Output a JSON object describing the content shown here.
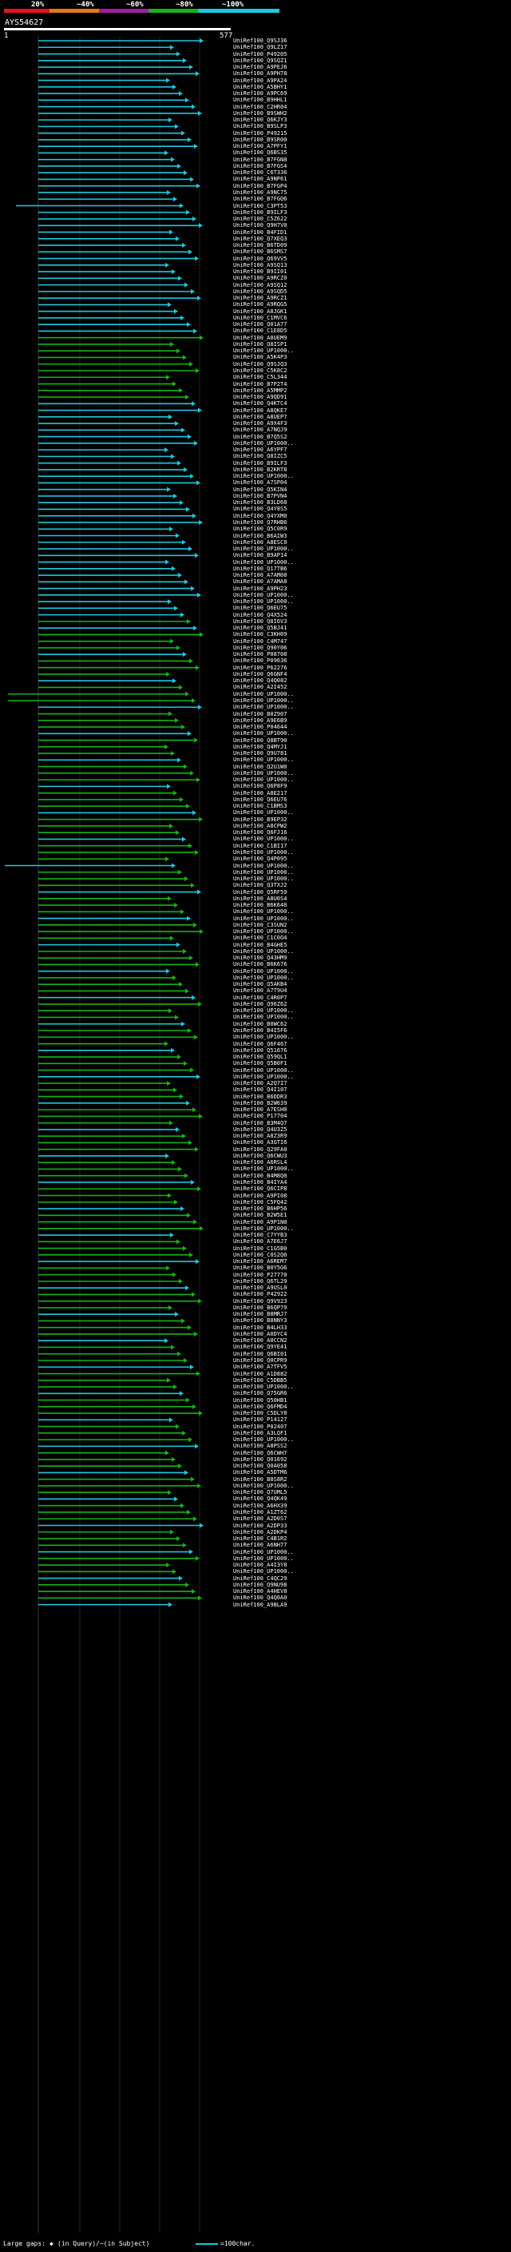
{
  "legend": [
    {
      "label": "20%",
      "color": "#e6141e"
    },
    {
      "label": "~40%",
      "color": "#e67814"
    },
    {
      "label": "~60%",
      "color": "#a01ea0"
    },
    {
      "label": "~80%",
      "color": "#14b414"
    },
    {
      "label": "~100%",
      "color": "#1ec8dc"
    }
  ],
  "query": {
    "name": "AYS54627",
    "start": "1",
    "end": "577"
  },
  "hits": [
    "UniRef100_Q9SJ36",
    "UniRef100_Q9LZ17",
    "UniRef100_P49205",
    "UniRef100_Q9SQZ1",
    "UniRef100_A9PEJ6",
    "UniRef100_A9PH78",
    "UniRef100_A9PA24",
    "UniRef100_A5BHY1",
    "UniRef100_A9PC69",
    "UniRef100_B9HHL1",
    "UniRef100_C2HR04",
    "UniRef100_B9SWH2",
    "UniRef100_Q6KJY3",
    "UniRef100_B9SLP3",
    "UniRef100_P49215",
    "UniRef100_B9SR00",
    "UniRef100_A7PFY1",
    "UniRef100_Q6BS35",
    "UniRef100_B7FGN8",
    "UniRef100_B7FGS4",
    "UniRef100_C6T336",
    "UniRef100_A9NP61",
    "UniRef100_B7FGP4",
    "UniRef100_A9NC75",
    "UniRef100_B7FGQ6",
    "UniRef100_C3PT53",
    "UniRef100_B9ILF3",
    "UniRef100_C5Z622",
    "UniRef100_Q9H7V0",
    "UniRef100_B4FID1",
    "UniRef100_Q7XEQ3",
    "UniRef100_B6TD09",
    "UniRef100_B6SMS7",
    "UniRef100_Q69VV5",
    "UniRef100_A9SQ13",
    "UniRef100_B9II01",
    "UniRef100_A9RCZ0",
    "UniRef100_A9SQ12",
    "UniRef100_A9SQD5",
    "UniRef100_A9RCZ1",
    "UniRef100_A9RQG5",
    "UniRef100_A8JGK1",
    "UniRef100_C1MVC6",
    "UniRef100_Q01A77",
    "UniRef100_C1E8D5",
    "UniRef100_A8UEM9",
    "UniRef100_Q8ISP1",
    "UniRef100_UP1000..",
    "UniRef100_A5K4P3",
    "UniRef100_Q9SJQ3",
    "UniRef100_C5K8C2",
    "UniRef100_C5L344",
    "UniRef100_B7P2T4",
    "UniRef100_A5MMP2",
    "UniRef100_A9QD91",
    "UniRef100_Q4KTC4",
    "UniRef100_A8QKE7",
    "UniRef100_A8UEP7",
    "UniRef100_A9X4F3",
    "UniRef100_A7NQJ9",
    "UniRef100_B7Q5S2",
    "UniRef100_UP1000..",
    "UniRef100_A6YPF7",
    "UniRef100_Q8IZC5",
    "UniRef100_B9ILF3",
    "UniRef100_B2KRT8",
    "UniRef100_UP1000..",
    "UniRef100_A7SP04",
    "UniRef100_Q5KIN4",
    "UniRef100_B7PVN4",
    "UniRef100_B3LD68",
    "UniRef100_Q4Y8S5",
    "UniRef100_Q4YXM0",
    "UniRef100_Q7RHB6",
    "UniRef100_Q5C0R9",
    "UniRef100_B6AIW3",
    "UniRef100_A8ESC0",
    "UniRef100_UP1000..",
    "UniRef100_B9AP14",
    "UniRef100_UP1000..",
    "UniRef100_Q17TB6",
    "UniRef100_A7AM08",
    "UniRef100_A7AMA8",
    "UniRef100_A9PH23",
    "UniRef100_UP1000..",
    "UniRef100_UP1000..",
    "UniRef100_Q6EU75",
    "UniRef100_Q4X524",
    "UniRef100_Q8I6V3",
    "UniRef100_Q5BJ41",
    "UniRef100_C3KH09",
    "UniRef100_C4M747",
    "UniRef100_Q90Y06",
    "UniRef100_P08708",
    "UniRef100_P09636",
    "UniRef100_P62276",
    "UniRef100_Q6GNF4",
    "UniRef100_Q4Q082",
    "UniRef100_A2I452",
    "UniRef100_UP1000..",
    "UniRef100_UP1000..",
    "UniRef100_UP1000..",
    "UniRef100_B0Z907",
    "UniRef100_A9E6B9",
    "UniRef100_P04644",
    "UniRef100_UP1000..",
    "UniRef100_Q8BT90",
    "UniRef100_Q4MYJ1",
    "UniRef100_Q9U781",
    "UniRef100_UP1000..",
    "UniRef100_Q2U1W0",
    "UniRef100_UP1000..",
    "UniRef100_UP1000..",
    "UniRef100_Q6P8F9",
    "UniRef100_A8E217",
    "UniRef100_Q6EU76",
    "UniRef100_C1BMS3",
    "UniRef100_UP1000..",
    "UniRef100_B9EP32",
    "UniRef100_A8CPW2",
    "UniRef100_Q6FJ16",
    "UniRef100_UP1000..",
    "UniRef100_C1BI17",
    "UniRef100_UP1000..",
    "UniRef100_Q4P095",
    "UniRef100_UP1000..",
    "UniRef100_UP1000..",
    "UniRef100_UP1000..",
    "UniRef100_Q3TXJ2",
    "UniRef100_Q5RF59",
    "UniRef100_A8U0S4",
    "UniRef100_B6K640",
    "UniRef100_UP1000..",
    "UniRef100_UP1000..",
    "UniRef100_C3SUN2",
    "UniRef100_UP1000..",
    "UniRef100_C1C0O4",
    "UniRef100_B4GHE5",
    "UniRef100_UP1000..",
    "UniRef100_Q43HM9",
    "UniRef100_B6K676",
    "UniRef100_UP1000..",
    "UniRef100_UP1000..",
    "UniRef100_Q5AKB4",
    "UniRef100_A7T9U4",
    "UniRef100_C4R0P7",
    "UniRef100_Q96Z62",
    "UniRef100_UP1000..",
    "UniRef100_UP1000..",
    "UniRef100_B0WC62",
    "UniRef100_B4I5F6",
    "UniRef100_UP1000..",
    "UniRef100_Q6F467",
    "UniRef100_Q51676",
    "UniRef100_Q59QL1",
    "UniRef100_Q5B0F1",
    "UniRef100_UP1000..",
    "UniRef100_UP1000..",
    "UniRef100_A2Q7I7",
    "UniRef100_Q4I107",
    "UniRef100_B6DDR3",
    "UniRef100_B2W639",
    "UniRef100_A7ESH0",
    "UniRef100_P17704",
    "UniRef100_B3M4Q7",
    "UniRef100_Q4U3Z5",
    "UniRef100_A8Z3R9",
    "UniRef100_A3GTI6",
    "UniRef100_Q29FA0",
    "UniRef100_Q6CWU3",
    "UniRef100_A6RSL4",
    "UniRef100_UP1000..",
    "UniRef100_B4M8Q0",
    "UniRef100_B4IYA4",
    "UniRef100_Q6CIP8",
    "UniRef100_A9PI08",
    "UniRef100_C5FQ42",
    "UniRef100_B6HP56",
    "UniRef100_B2W5E1",
    "UniRef100_A9P1N0",
    "UniRef100_UP1000..",
    "UniRef100_C7YYB3",
    "UniRef100_A7E6J7",
    "UniRef100_C1G5B0",
    "UniRef100_C0S2Q6",
    "UniRef100_A6REM7",
    "UniRef100_B0Y5G6",
    "UniRef100_P27770",
    "UniRef100_Q6TL29",
    "UniRef100_A9USL0",
    "UniRef100_P42922",
    "UniRef100_Q9V923",
    "UniRef100_B6QP79",
    "UniRef100_B8MRJ7",
    "UniRef100_B8NNY3",
    "UniRef100_B4LH33",
    "UniRef100_A0DYC4",
    "UniRef100_A0CCN2",
    "UniRef100_Q9YE41",
    "UniRef100_Q6BI01",
    "UniRef100_Q0CPR9",
    "UniRef100_A7TFV5",
    "UniRef100_A1D882",
    "UniRef100_C5DBB5",
    "UniRef100_UP1000..",
    "UniRef100_Q75GR6",
    "UniRef100_Q50HB1",
    "UniRef100_Q6FMD4",
    "UniRef100_C5DLY8",
    "UniRef100_P14127",
    "UniRef100_P02407",
    "UniRef100_A3LQF1",
    "UniRef100_UP1000..",
    "UniRef100_A8PSS2",
    "UniRef100_Q6CWH7",
    "UniRef100_Q01692",
    "UniRef100_Q0A058",
    "UniRef100_A5DTM6",
    "UniRef100_B8S8R2",
    "UniRef100_UP1000..",
    "UniRef100_Q7UML5",
    "UniRef100_Q4QK49",
    "UniRef100_A6HX39",
    "UniRef100_A1ZT62",
    "UniRef100_A2D0S7",
    "UniRef100_A2DP33",
    "UniRef100_A2DKP4",
    "UniRef100_C4B1R2",
    "UniRef100_A6NH77",
    "UniRef100_UP1000..",
    "UniRef100_UP1000..",
    "UniRef100_A4I3Y8",
    "UniRef100_UP1000..",
    "UniRef100_C4QC29",
    "UniRef100_Q9NU98",
    "UniRef100_A4HEV8",
    "UniRef100_Q4Q0A0",
    "UniRef100_A9BLA9"
  ],
  "footer": {
    "gap_label": "Large gaps:",
    "query_gap": "(in Query)",
    "subject_gap": "/~(in Subject)",
    "scale": "=100char."
  }
}
